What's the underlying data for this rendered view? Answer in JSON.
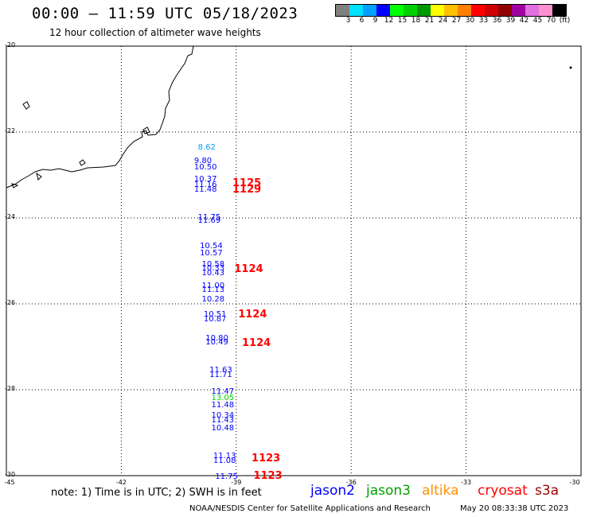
{
  "header": {
    "title": "00:00 – 11:59 UTC 05/18/2023",
    "subtitle": "12 hour collection of altimeter wave heights"
  },
  "legend": {
    "unit": "(ft)",
    "steps": [
      {
        "label": "3",
        "color": "#808080"
      },
      {
        "label": "6",
        "color": "#00e0ff"
      },
      {
        "label": "9",
        "color": "#00a0ff"
      },
      {
        "label": "12",
        "color": "#0000ff"
      },
      {
        "label": "15",
        "color": "#00ff00"
      },
      {
        "label": "18",
        "color": "#00d000"
      },
      {
        "label": "21",
        "color": "#009800"
      },
      {
        "label": "24",
        "color": "#ffff00"
      },
      {
        "label": "27",
        "color": "#ffc000"
      },
      {
        "label": "30",
        "color": "#ff8000"
      },
      {
        "label": "33",
        "color": "#ff0000"
      },
      {
        "label": "36",
        "color": "#d00000"
      },
      {
        "label": "39",
        "color": "#900000"
      },
      {
        "label": "42",
        "color": "#a000a0"
      },
      {
        "label": "45",
        "color": "#e070e0"
      },
      {
        "label": "70",
        "color": "#ff90d0"
      },
      {
        "label": "",
        "color": "#000000"
      }
    ]
  },
  "axes": {
    "lat_ticks": [
      "-20",
      "-22",
      "-24",
      "-26",
      "-28",
      "-30"
    ],
    "lon_ticks": [
      "-45",
      "-42",
      "-39",
      "-36",
      "-33",
      "-30"
    ]
  },
  "observations": [
    {
      "value": "8.62",
      "lon": -40.0,
      "lat": -22.25,
      "color": "#00a0ff"
    },
    {
      "value": "9.80",
      "lon": -40.1,
      "lat": -22.58,
      "color": "#0000ff"
    },
    {
      "value": "10.50",
      "lon": -40.1,
      "lat": -22.72,
      "color": "#0000ff"
    },
    {
      "value": "10.37",
      "lon": -40.1,
      "lat": -23.0,
      "color": "#0000ff"
    },
    {
      "value": "11.16",
      "lon": -40.1,
      "lat": -23.13,
      "color": "#0000ff"
    },
    {
      "value": "11.48",
      "lon": -40.1,
      "lat": -23.24,
      "color": "#0000ff"
    },
    {
      "value": "11.75",
      "lon": -40.0,
      "lat": -23.88,
      "color": "#0000ff"
    },
    {
      "value": "11.69",
      "lon": -40.0,
      "lat": -23.97,
      "color": "#0000ff"
    },
    {
      "value": "10.54",
      "lon": -39.95,
      "lat": -24.55,
      "color": "#0000ff"
    },
    {
      "value": "10.57",
      "lon": -39.95,
      "lat": -24.72,
      "color": "#0000ff"
    },
    {
      "value": "10.58",
      "lon": -39.9,
      "lat": -24.98,
      "color": "#0000ff"
    },
    {
      "value": "10.33",
      "lon": -39.9,
      "lat": -25.08,
      "color": "#0000ff"
    },
    {
      "value": "10.43",
      "lon": -39.9,
      "lat": -25.18,
      "color": "#0000ff"
    },
    {
      "value": "11.00",
      "lon": -39.9,
      "lat": -25.48,
      "color": "#0000ff"
    },
    {
      "value": "11.13",
      "lon": -39.9,
      "lat": -25.58,
      "color": "#0000ff"
    },
    {
      "value": "10.28",
      "lon": -39.9,
      "lat": -25.8,
      "color": "#0000ff"
    },
    {
      "value": "10.51",
      "lon": -39.85,
      "lat": -26.15,
      "color": "#0000ff"
    },
    {
      "value": "10.87",
      "lon": -39.85,
      "lat": -26.25,
      "color": "#0000ff"
    },
    {
      "value": "10.80",
      "lon": -39.8,
      "lat": -26.7,
      "color": "#0000ff"
    },
    {
      "value": "10.49",
      "lon": -39.8,
      "lat": -26.8,
      "color": "#0000ff"
    },
    {
      "value": "11.63",
      "lon": -39.7,
      "lat": -27.45,
      "color": "#0000ff"
    },
    {
      "value": "11.71",
      "lon": -39.7,
      "lat": -27.55,
      "color": "#0000ff"
    },
    {
      "value": "11.47",
      "lon": -39.65,
      "lat": -27.95,
      "color": "#0000ff"
    },
    {
      "value": "13.05",
      "lon": -39.65,
      "lat": -28.1,
      "color": "#00d000"
    },
    {
      "value": "11.48",
      "lon": -39.65,
      "lat": -28.25,
      "color": "#0000ff"
    },
    {
      "value": "10.34",
      "lon": -39.65,
      "lat": -28.5,
      "color": "#0000ff"
    },
    {
      "value": "11.43",
      "lon": -39.65,
      "lat": -28.62,
      "color": "#0000ff"
    },
    {
      "value": "10.48",
      "lon": -39.65,
      "lat": -28.8,
      "color": "#0000ff"
    },
    {
      "value": "11.13",
      "lon": -39.6,
      "lat": -29.45,
      "color": "#0000ff"
    },
    {
      "value": "11.08",
      "lon": -39.6,
      "lat": -29.55,
      "color": "#0000ff"
    },
    {
      "value": "11.75",
      "lon": -39.55,
      "lat": -29.93,
      "color": "#0000ff"
    }
  ],
  "time_marks": [
    {
      "value": "1125",
      "lon": -39.1,
      "lat": -23.05,
      "color": "#ff0000"
    },
    {
      "value": "1129",
      "lon": -39.1,
      "lat": -23.2,
      "color": "#ff0000"
    },
    {
      "value": "1124",
      "lon": -39.05,
      "lat": -25.05,
      "color": "#ff0000"
    },
    {
      "value": "1124",
      "lon": -38.95,
      "lat": -26.12,
      "color": "#ff0000"
    },
    {
      "value": "1124",
      "lon": -38.85,
      "lat": -26.78,
      "color": "#ff0000"
    },
    {
      "value": "1123",
      "lon": -38.6,
      "lat": -29.47,
      "color": "#ff0000"
    },
    {
      "value": "1123",
      "lon": -38.55,
      "lat": -29.87,
      "color": "#ff0000"
    }
  ],
  "footer": {
    "note": "note: 1) Time is in UTC; 2) SWH is in feet",
    "satellites": [
      {
        "name": "jason2",
        "color": "#0000ff"
      },
      {
        "name": "jason3",
        "color": "#00a000"
      },
      {
        "name": "altika",
        "color": "#ff9000"
      },
      {
        "name": "cryosat",
        "color": "#ff0000"
      },
      {
        "name": "s3a",
        "color": "#a00000"
      }
    ],
    "credit": "NOAA/NESDIS Center for Satellite Applications and Research",
    "timestamp": "May 20 08:33:38 UTC 2023"
  }
}
